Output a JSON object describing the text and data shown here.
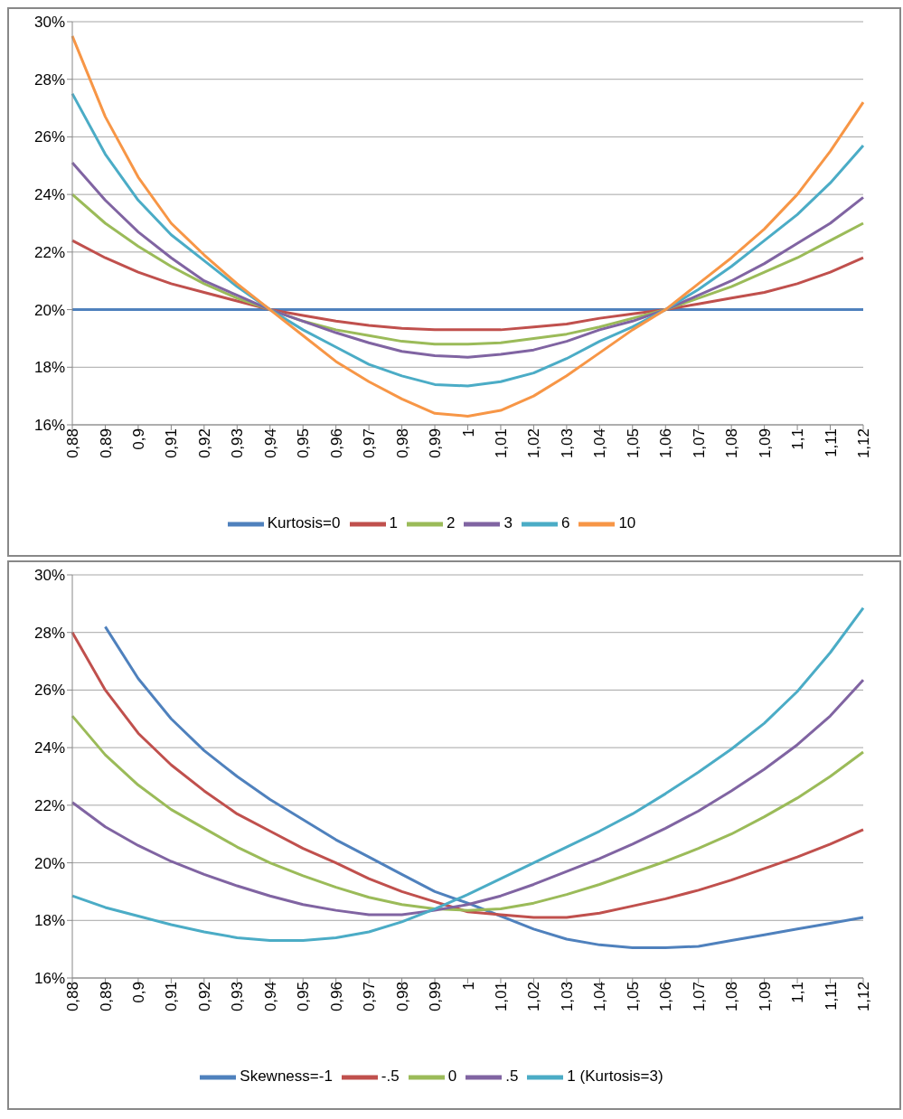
{
  "chart_data": [
    {
      "type": "line",
      "categories": [
        "0,88",
        "0,89",
        "0,9",
        "0,91",
        "0,92",
        "0,93",
        "0,94",
        "0,95",
        "0,96",
        "0,97",
        "0,98",
        "0,99",
        "1",
        "1,01",
        "1,02",
        "1,03",
        "1,04",
        "1,05",
        "1,06",
        "1,07",
        "1,08",
        "1,09",
        "1,1",
        "1,11",
        "1,12"
      ],
      "series": [
        {
          "name": "Kurtosis=0",
          "color": "#4f81bd",
          "values": [
            20,
            20,
            20,
            20,
            20,
            20,
            20,
            20,
            20,
            20,
            20,
            20,
            20,
            20,
            20,
            20,
            20,
            20,
            20,
            20,
            20,
            20,
            20,
            20,
            20
          ]
        },
        {
          "name": "1",
          "color": "#c0504d",
          "values": [
            22.4,
            21.8,
            21.3,
            20.9,
            20.6,
            20.3,
            20.0,
            19.8,
            19.6,
            19.45,
            19.35,
            19.3,
            19.3,
            19.3,
            19.4,
            19.5,
            19.7,
            19.85,
            20.0,
            20.2,
            20.4,
            20.6,
            20.9,
            21.3,
            21.8
          ]
        },
        {
          "name": "2",
          "color": "#9bbb59",
          "values": [
            24.0,
            23.0,
            22.2,
            21.5,
            20.9,
            20.4,
            20.0,
            19.6,
            19.3,
            19.1,
            18.9,
            18.8,
            18.8,
            18.85,
            19.0,
            19.15,
            19.4,
            19.7,
            20.0,
            20.4,
            20.8,
            21.3,
            21.8,
            22.4,
            23.0
          ]
        },
        {
          "name": "3",
          "color": "#8064a2",
          "values": [
            25.1,
            23.8,
            22.7,
            21.8,
            21.0,
            20.5,
            20.0,
            19.6,
            19.2,
            18.85,
            18.55,
            18.4,
            18.35,
            18.45,
            18.6,
            18.9,
            19.3,
            19.6,
            20.0,
            20.5,
            21.0,
            21.6,
            22.3,
            23.0,
            23.9
          ]
        },
        {
          "name": "6",
          "color": "#4bacc6",
          "values": [
            27.5,
            25.4,
            23.8,
            22.6,
            21.7,
            20.8,
            20.0,
            19.3,
            18.7,
            18.1,
            17.7,
            17.4,
            17.35,
            17.5,
            17.8,
            18.3,
            18.9,
            19.4,
            20.0,
            20.7,
            21.5,
            22.4,
            23.3,
            24.4,
            25.7
          ]
        },
        {
          "name": "10",
          "color": "#f79646",
          "values": [
            29.5,
            26.7,
            24.6,
            23.0,
            21.9,
            20.9,
            20.0,
            19.1,
            18.2,
            17.5,
            16.9,
            16.4,
            16.3,
            16.5,
            17.0,
            17.7,
            18.5,
            19.3,
            20.0,
            20.9,
            21.8,
            22.8,
            24.0,
            25.5,
            27.2
          ]
        }
      ],
      "ylim": [
        16,
        30
      ],
      "yticks": [
        {
          "value": 16,
          "label": "16%"
        },
        {
          "value": 18,
          "label": "18%"
        },
        {
          "value": 20,
          "label": "20%"
        },
        {
          "value": 22,
          "label": "22%"
        },
        {
          "value": 24,
          "label": "24%"
        },
        {
          "value": 26,
          "label": "26%"
        },
        {
          "value": 28,
          "label": "28%"
        },
        {
          "value": 30,
          "label": "30%"
        }
      ],
      "grid": "y",
      "legend": "bottom",
      "marker": "none",
      "line_style": "solid"
    },
    {
      "type": "line",
      "categories": [
        "0,88",
        "0,89",
        "0,9",
        "0,91",
        "0,92",
        "0,93",
        "0,94",
        "0,95",
        "0,96",
        "0,97",
        "0,98",
        "0,99",
        "1",
        "1,01",
        "1,02",
        "1,03",
        "1,04",
        "1,05",
        "1,06",
        "1,07",
        "1,08",
        "1,09",
        "1,1",
        "1,11",
        "1,12"
      ],
      "series": [
        {
          "name": "Skewness=-1",
          "color": "#4f81bd",
          "values": [
            null,
            28.2,
            26.4,
            25.0,
            23.9,
            23.0,
            22.2,
            21.5,
            20.8,
            20.2,
            19.6,
            19.0,
            18.6,
            18.15,
            17.7,
            17.35,
            17.15,
            17.05,
            17.05,
            17.1,
            17.3,
            17.5,
            17.7,
            17.9,
            18.1
          ]
        },
        {
          "name": "-.5",
          "color": "#c0504d",
          "values": [
            28.0,
            26.0,
            24.5,
            23.4,
            22.5,
            21.7,
            21.1,
            20.5,
            20.0,
            19.45,
            19.0,
            18.65,
            18.3,
            18.2,
            18.1,
            18.1,
            18.25,
            18.5,
            18.75,
            19.05,
            19.4,
            19.8,
            20.2,
            20.65,
            21.15
          ]
        },
        {
          "name": "0",
          "color": "#9bbb59",
          "values": [
            25.1,
            23.75,
            22.7,
            21.85,
            21.2,
            20.55,
            20.0,
            19.55,
            19.15,
            18.8,
            18.55,
            18.4,
            18.35,
            18.4,
            18.6,
            18.9,
            19.25,
            19.65,
            20.05,
            20.5,
            21.0,
            21.6,
            22.25,
            23.0,
            23.85
          ]
        },
        {
          "name": ".5",
          "color": "#8064a2",
          "values": [
            22.1,
            21.25,
            20.6,
            20.05,
            19.6,
            19.2,
            18.85,
            18.55,
            18.35,
            18.2,
            18.2,
            18.35,
            18.55,
            18.85,
            19.25,
            19.7,
            20.15,
            20.65,
            21.2,
            21.8,
            22.5,
            23.25,
            24.1,
            25.1,
            26.35
          ]
        },
        {
          "name": "1  (Kurtosis=3)",
          "color": "#4bacc6",
          "values": [
            18.85,
            18.45,
            18.15,
            17.85,
            17.6,
            17.4,
            17.3,
            17.3,
            17.4,
            17.6,
            17.95,
            18.4,
            18.9,
            19.45,
            20.0,
            20.55,
            21.1,
            21.7,
            22.4,
            23.15,
            23.95,
            24.85,
            25.95,
            27.3,
            28.85
          ]
        }
      ],
      "ylim": [
        16,
        30
      ],
      "yticks": [
        {
          "value": 16,
          "label": "16%"
        },
        {
          "value": 18,
          "label": "18%"
        },
        {
          "value": 20,
          "label": "20%"
        },
        {
          "value": 22,
          "label": "22%"
        },
        {
          "value": 24,
          "label": "24%"
        },
        {
          "value": 26,
          "label": "26%"
        },
        {
          "value": 28,
          "label": "28%"
        },
        {
          "value": 30,
          "label": "30%"
        }
      ],
      "grid": "y",
      "legend": "bottom",
      "marker": "none",
      "line_style": "solid"
    }
  ]
}
